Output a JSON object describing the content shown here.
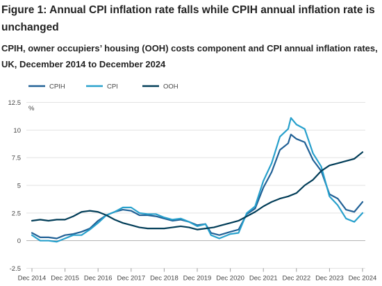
{
  "figure": {
    "title": "Figure 1: Annual CPI inflation rate falls while CPIH annual inflation rate is unchanged",
    "subtitle": "CPIH, owner occupiers’ housing (OOH) costs component and CPI annual inflation rates, UK, December 2014 to December 2024"
  },
  "chart_data": {
    "type": "line",
    "title": "Figure 1: Annual CPI inflation rate falls while CPIH annual inflation rate is unchanged",
    "subtitle": "CPIH, owner occupiers’ housing (OOH) costs component and CPI annual inflation rates, UK, December 2014 to December 2024",
    "unit_label": "%",
    "xlabel": "",
    "ylabel": "",
    "ylim": [
      -2.5,
      12.5
    ],
    "yticks": [
      -2.5,
      0,
      2.5,
      5,
      7.5,
      10,
      12.5
    ],
    "ytick_labels": [
      "-2.5",
      "0",
      "2.5",
      "5",
      "7.5",
      "10",
      "12.5"
    ],
    "xlim": [
      "2014-12",
      "2024-12"
    ],
    "xtick_labels": [
      "Dec 2014",
      "Dec 2015",
      "Dec 2016",
      "Dec 2017",
      "Dec 2018",
      "Dec 2019",
      "Dec 2020",
      "Dec 2021",
      "Dec 2022",
      "Dec 2023",
      "Dec 2024"
    ],
    "grid": true,
    "legend": "top-left",
    "series": [
      {
        "name": "CPIH",
        "color": "#206095",
        "points": [
          [
            "2014-12",
            0.7
          ],
          [
            "2015-03",
            0.3
          ],
          [
            "2015-06",
            0.3
          ],
          [
            "2015-09",
            0.2
          ],
          [
            "2015-12",
            0.5
          ],
          [
            "2016-03",
            0.6
          ],
          [
            "2016-06",
            0.8
          ],
          [
            "2016-09",
            1.1
          ],
          [
            "2016-12",
            1.8
          ],
          [
            "2017-03",
            2.3
          ],
          [
            "2017-06",
            2.6
          ],
          [
            "2017-09",
            2.8
          ],
          [
            "2017-12",
            2.7
          ],
          [
            "2018-03",
            2.3
          ],
          [
            "2018-06",
            2.3
          ],
          [
            "2018-09",
            2.2
          ],
          [
            "2018-12",
            2.0
          ],
          [
            "2019-03",
            1.8
          ],
          [
            "2019-06",
            1.9
          ],
          [
            "2019-09",
            1.7
          ],
          [
            "2019-12",
            1.4
          ],
          [
            "2020-03",
            1.5
          ],
          [
            "2020-05",
            0.7
          ],
          [
            "2020-08",
            0.5
          ],
          [
            "2020-12",
            0.8
          ],
          [
            "2021-03",
            1.0
          ],
          [
            "2021-06",
            2.4
          ],
          [
            "2021-09",
            2.9
          ],
          [
            "2021-12",
            4.8
          ],
          [
            "2022-03",
            6.2
          ],
          [
            "2022-06",
            8.2
          ],
          [
            "2022-09",
            8.8
          ],
          [
            "2022-10",
            9.6
          ],
          [
            "2022-12",
            9.2
          ],
          [
            "2023-03",
            8.9
          ],
          [
            "2023-06",
            7.3
          ],
          [
            "2023-09",
            6.3
          ],
          [
            "2023-12",
            4.2
          ],
          [
            "2024-03",
            3.8
          ],
          [
            "2024-06",
            2.8
          ],
          [
            "2024-09",
            2.6
          ],
          [
            "2024-12",
            3.5
          ]
        ]
      },
      {
        "name": "CPI",
        "color": "#27a0cc",
        "points": [
          [
            "2014-12",
            0.5
          ],
          [
            "2015-03",
            0.0
          ],
          [
            "2015-06",
            0.0
          ],
          [
            "2015-09",
            -0.1
          ],
          [
            "2015-12",
            0.2
          ],
          [
            "2016-03",
            0.5
          ],
          [
            "2016-06",
            0.5
          ],
          [
            "2016-09",
            1.0
          ],
          [
            "2016-12",
            1.6
          ],
          [
            "2017-03",
            2.3
          ],
          [
            "2017-06",
            2.6
          ],
          [
            "2017-09",
            3.0
          ],
          [
            "2017-12",
            3.0
          ],
          [
            "2018-03",
            2.5
          ],
          [
            "2018-06",
            2.4
          ],
          [
            "2018-09",
            2.4
          ],
          [
            "2018-12",
            2.1
          ],
          [
            "2019-03",
            1.9
          ],
          [
            "2019-06",
            2.0
          ],
          [
            "2019-09",
            1.7
          ],
          [
            "2019-12",
            1.3
          ],
          [
            "2020-03",
            1.5
          ],
          [
            "2020-05",
            0.5
          ],
          [
            "2020-08",
            0.2
          ],
          [
            "2020-12",
            0.6
          ],
          [
            "2021-03",
            0.7
          ],
          [
            "2021-06",
            2.5
          ],
          [
            "2021-09",
            3.1
          ],
          [
            "2021-12",
            5.4
          ],
          [
            "2022-03",
            7.0
          ],
          [
            "2022-06",
            9.4
          ],
          [
            "2022-09",
            10.1
          ],
          [
            "2022-10",
            11.1
          ],
          [
            "2022-12",
            10.5
          ],
          [
            "2023-03",
            10.1
          ],
          [
            "2023-06",
            7.9
          ],
          [
            "2023-09",
            6.7
          ],
          [
            "2023-12",
            4.0
          ],
          [
            "2024-03",
            3.2
          ],
          [
            "2024-06",
            2.0
          ],
          [
            "2024-09",
            1.7
          ],
          [
            "2024-12",
            2.5
          ]
        ]
      },
      {
        "name": "OOH",
        "color": "#003c57",
        "points": [
          [
            "2014-12",
            1.8
          ],
          [
            "2015-03",
            1.9
          ],
          [
            "2015-06",
            1.8
          ],
          [
            "2015-09",
            1.9
          ],
          [
            "2015-12",
            1.9
          ],
          [
            "2016-03",
            2.2
          ],
          [
            "2016-06",
            2.6
          ],
          [
            "2016-09",
            2.7
          ],
          [
            "2016-12",
            2.6
          ],
          [
            "2017-03",
            2.3
          ],
          [
            "2017-06",
            1.9
          ],
          [
            "2017-09",
            1.6
          ],
          [
            "2017-12",
            1.4
          ],
          [
            "2018-03",
            1.2
          ],
          [
            "2018-06",
            1.1
          ],
          [
            "2018-09",
            1.1
          ],
          [
            "2018-12",
            1.1
          ],
          [
            "2019-03",
            1.2
          ],
          [
            "2019-06",
            1.3
          ],
          [
            "2019-09",
            1.2
          ],
          [
            "2019-12",
            1.0
          ],
          [
            "2020-03",
            1.1
          ],
          [
            "2020-06",
            1.2
          ],
          [
            "2020-09",
            1.4
          ],
          [
            "2020-12",
            1.6
          ],
          [
            "2021-03",
            1.8
          ],
          [
            "2021-06",
            2.2
          ],
          [
            "2021-09",
            2.6
          ],
          [
            "2021-12",
            3.1
          ],
          [
            "2022-03",
            3.5
          ],
          [
            "2022-06",
            3.8
          ],
          [
            "2022-09",
            4.0
          ],
          [
            "2022-12",
            4.3
          ],
          [
            "2023-03",
            5.0
          ],
          [
            "2023-06",
            5.5
          ],
          [
            "2023-09",
            6.3
          ],
          [
            "2023-12",
            6.8
          ],
          [
            "2024-03",
            7.0
          ],
          [
            "2024-06",
            7.2
          ],
          [
            "2024-09",
            7.4
          ],
          [
            "2024-12",
            8.0
          ]
        ]
      }
    ]
  }
}
